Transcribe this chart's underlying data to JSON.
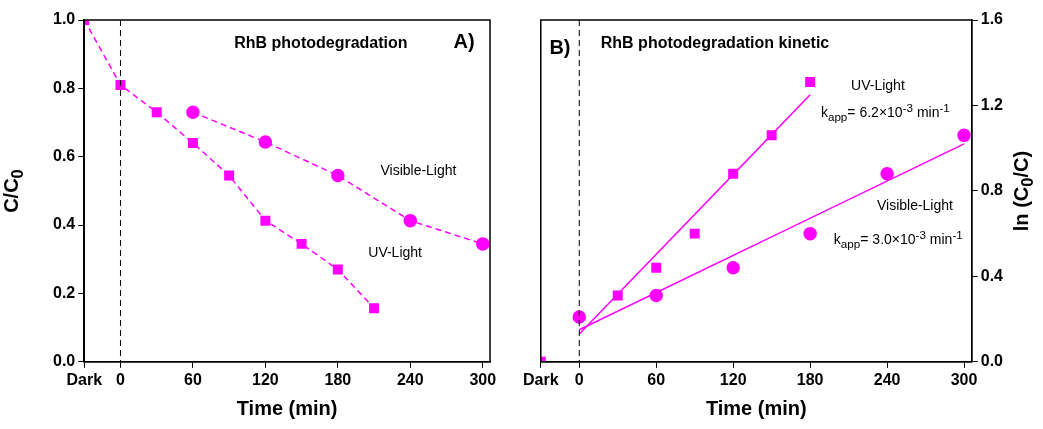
{
  "chart_data": [
    {
      "type": "line",
      "title": "RhB photodegradation",
      "xlabel": "Time (min)",
      "ylabel": "C/C$_{0}$",
      "xlim": [
        -30,
        306
      ],
      "xticks": [
        {
          "value": -30,
          "label": "Dark"
        },
        0,
        60,
        120,
        180,
        240,
        300
      ],
      "ylim": [
        0,
        1.0
      ],
      "yticks": [
        {
          "value": 0,
          "label": "0.0"
        },
        0.2,
        0.4,
        0.6,
        0.8,
        {
          "value": 1,
          "label": "1.0"
        }
      ],
      "grid": false,
      "legend": false,
      "line_style": "dashed",
      "series": [
        {
          "marker": "square",
          "color": "#ff00ff",
          "x": [
            -30,
            0,
            30,
            60,
            90,
            120,
            150,
            180,
            210
          ],
          "values": [
            1.0,
            0.81,
            0.73,
            0.64,
            0.545,
            0.413,
            0.345,
            0.27,
            0.157
          ]
        },
        {
          "marker": "circle",
          "color": "#ff00ff",
          "x": [
            60,
            120,
            180,
            240,
            300
          ],
          "values": [
            0.73,
            0.643,
            0.545,
            0.413,
            0.345
          ]
        }
      ],
      "ref_lines": [
        {
          "axis": "x",
          "value": 0,
          "color": "#000000",
          "line_style": "dashed"
        }
      ],
      "annotations": [
        "A)",
        "Visible-Light",
        "UV-Light"
      ]
    },
    {
      "type": "scatter",
      "title": "RhB photodegradation kinetic",
      "xlabel": "Time (min)",
      "y2label": "ln (C$_{0}$/C)",
      "xlim": [
        -30,
        306
      ],
      "xticks": [
        {
          "value": -30,
          "label": "Dark"
        },
        0,
        60,
        120,
        180,
        240,
        300
      ],
      "y2lim": [
        0,
        1.6
      ],
      "y2ticks": [
        {
          "value": 0,
          "label": "0.0"
        },
        0.4,
        0.8,
        1.2,
        1.6
      ],
      "grid": false,
      "legend": false,
      "series": [
        {
          "marker": "square",
          "axis": "y2",
          "color": "#ff00ff",
          "x": [
            -30,
            30,
            60,
            90,
            120,
            150,
            180
          ],
          "values": [
            0,
            0.31,
            0.44,
            0.6,
            0.88,
            1.06,
            1.31
          ]
        },
        {
          "marker": "circle",
          "axis": "y2",
          "color": "#ff00ff",
          "x": [
            0,
            60,
            120,
            180,
            240,
            300
          ],
          "values": [
            0.21,
            0.31,
            0.44,
            0.6,
            0.88,
            1.06
          ]
        },
        {
          "type": "line",
          "marker": "none",
          "line_style": "solid",
          "axis": "y2",
          "color": "#ff00ff",
          "x": [
            0,
            180
          ],
          "values": [
            0.13,
            1.25
          ]
        },
        {
          "type": "line",
          "marker": "none",
          "line_style": "solid",
          "axis": "y2",
          "color": "#ff00ff",
          "x": [
            0,
            300
          ],
          "values": [
            0.15,
            1.02
          ]
        }
      ],
      "ref_lines": [
        {
          "axis": "x",
          "value": 0,
          "color": "#000000",
          "line_style": "dashed"
        }
      ],
      "annotations": [
        "B)",
        "UV-Light",
        "k$_{app}$= 6.2×10$^{-3}$ min$^{-1}$",
        "Visible-Light",
        "k$_{app}$= 3.0×10$^{-3}$ min$^{-1}$"
      ]
    }
  ]
}
